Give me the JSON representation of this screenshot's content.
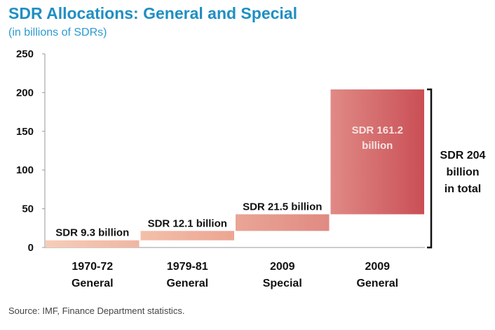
{
  "chart_data": {
    "type": "bar",
    "subtype": "waterfall",
    "title": "SDR Allocations: General and Special",
    "subtitle": "(in billions of SDRs)",
    "categories": [
      [
        "1970-72",
        "General"
      ],
      [
        "1979-81",
        "General"
      ],
      [
        "2009",
        "Special"
      ],
      [
        "2009",
        "General"
      ]
    ],
    "values": [
      9.3,
      12.1,
      21.5,
      161.2
    ],
    "data_labels": [
      [
        "SDR 9.3 billion"
      ],
      [
        "SDR 12.1 billion"
      ],
      [
        "SDR 21.5 billion"
      ],
      [
        "SDR 161.2",
        "billion"
      ]
    ],
    "total_label": [
      "SDR 204",
      "billion",
      "in total"
    ],
    "ylim": [
      0,
      250
    ],
    "yticks": [
      "0",
      "50",
      "100",
      "150",
      "200",
      "250"
    ],
    "grid": false,
    "colors": {
      "title": "#1f8fc2",
      "bar_light": "#f2bca9",
      "bar_mid": "#e79b92",
      "bar_dark": "#c9545a"
    }
  },
  "source": "Source: IMF, Finance Department statistics."
}
